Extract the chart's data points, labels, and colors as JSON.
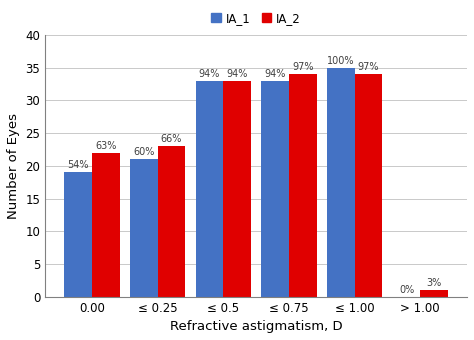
{
  "categories": [
    "0.00",
    "≤ 0.25",
    "≤ 0.5",
    "≤ 0.75",
    "≤ 1.00",
    "> 1.00"
  ],
  "ia1_values": [
    19,
    21,
    33,
    33,
    35,
    0
  ],
  "ia2_values": [
    22,
    23,
    33,
    34,
    34,
    1
  ],
  "ia1_labels": [
    "54%",
    "60%",
    "94%",
    "94%",
    "100%",
    "0%"
  ],
  "ia2_labels": [
    "63%",
    "66%",
    "94%",
    "97%",
    "97%",
    "3%"
  ],
  "ia1_color": "#4472C4",
  "ia2_color": "#E00000",
  "xlabel": "Refractive astigmatism, D",
  "ylabel": "Number of Eyes",
  "ylim": [
    0,
    40
  ],
  "yticks": [
    0,
    5,
    10,
    15,
    20,
    25,
    30,
    35,
    40
  ],
  "legend_labels": [
    "IA_1",
    "IA_2"
  ],
  "bar_width": 0.42,
  "label_fontsize": 7.0,
  "axis_fontsize": 9.5,
  "tick_fontsize": 8.5,
  "legend_fontsize": 8.5,
  "fig_width": 4.74,
  "fig_height": 3.4,
  "dpi": 100
}
